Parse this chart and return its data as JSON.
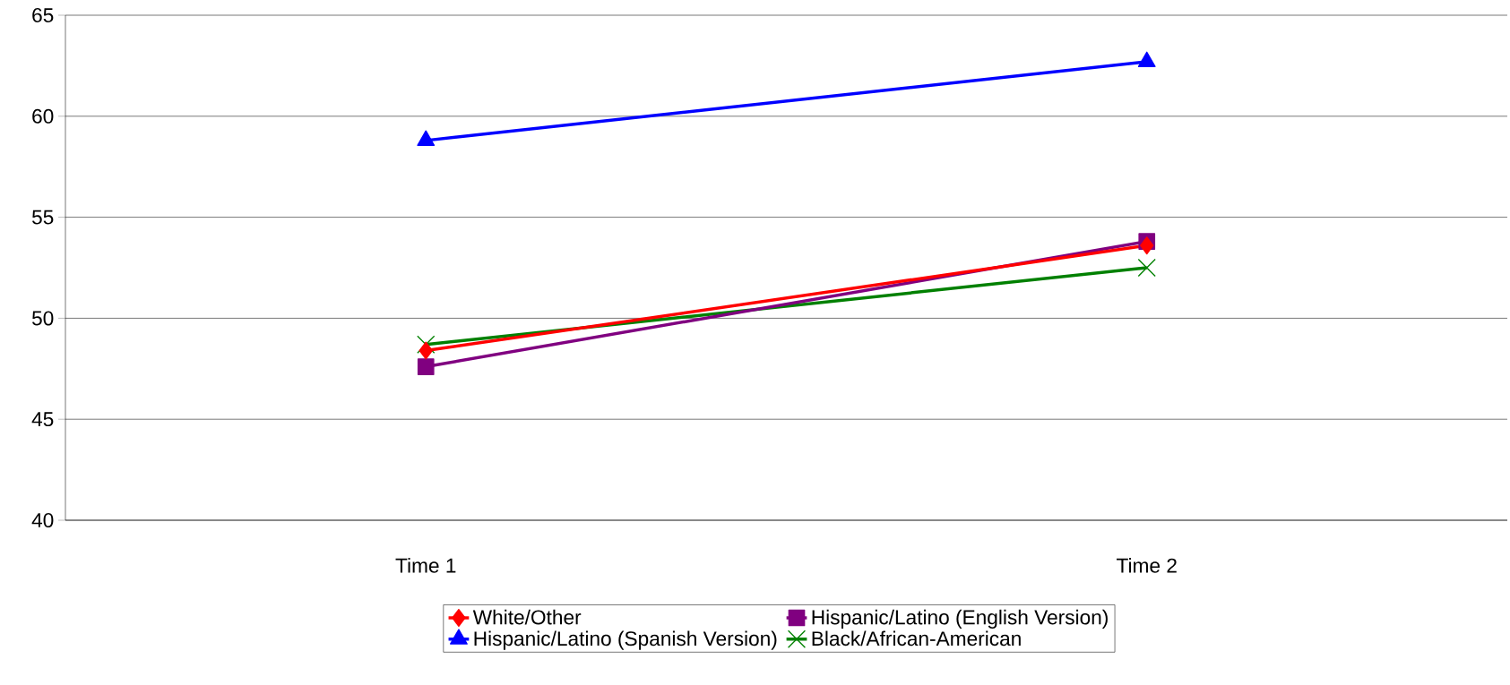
{
  "chart_data": {
    "type": "line",
    "categories": [
      "Time 1",
      "Time 2"
    ],
    "series": [
      {
        "name": "White/Other",
        "color": "#ff0000",
        "marker": "diamond",
        "values": [
          48.4,
          53.6
        ]
      },
      {
        "name": "Hispanic/Latino (English Version)",
        "color": "#800080",
        "marker": "square",
        "values": [
          47.6,
          53.8
        ]
      },
      {
        "name": "Hispanic/Latino (Spanish Version)",
        "color": "#0000ff",
        "marker": "triangle",
        "values": [
          58.8,
          62.7
        ]
      },
      {
        "name": "Black/African-American",
        "color": "#008000",
        "marker": "cross",
        "values": [
          48.7,
          52.5
        ]
      }
    ],
    "ylim": [
      40,
      65
    ],
    "yticks": [
      40,
      45,
      50,
      55,
      60,
      65
    ],
    "grid": "y",
    "legend": "bottom"
  }
}
